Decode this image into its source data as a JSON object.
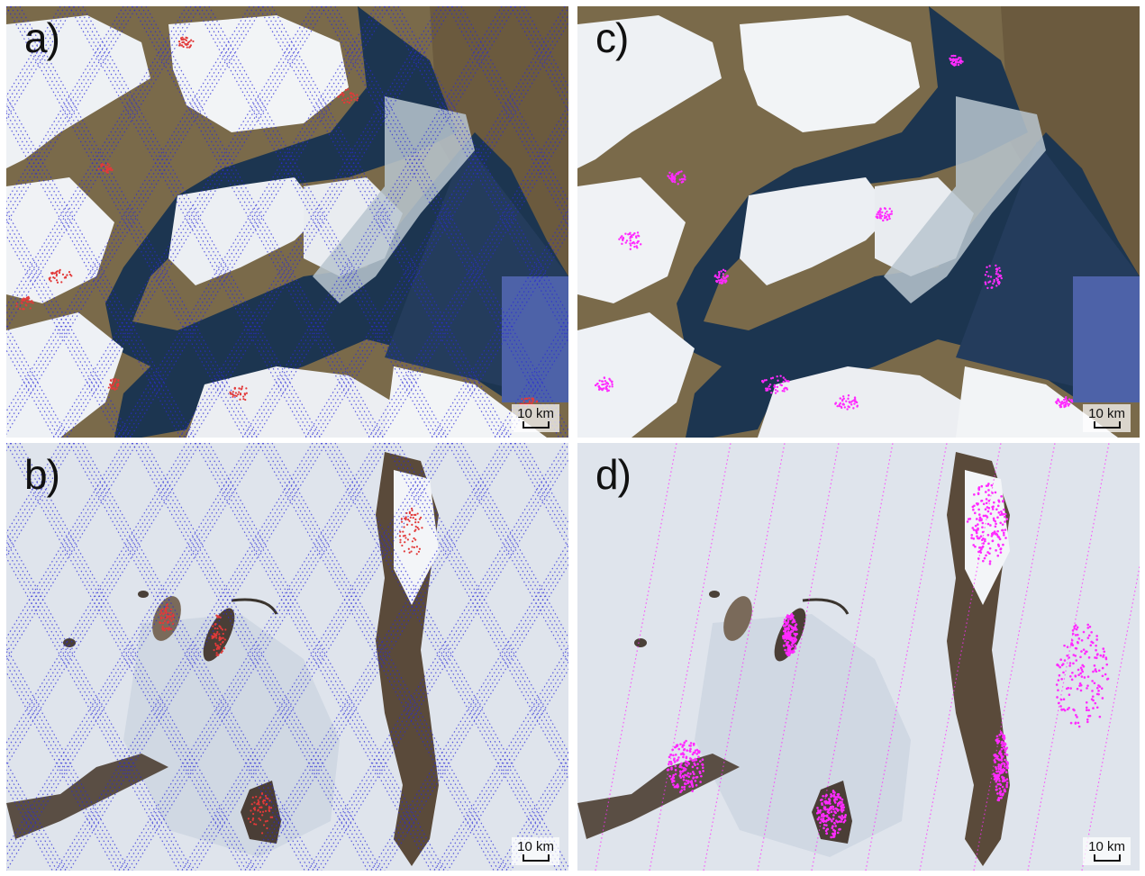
{
  "figure": {
    "panels": [
      {
        "id": "a",
        "label": "a)",
        "scale": "10 km",
        "overlay": "tracks"
      },
      {
        "id": "b",
        "label": "b)",
        "scale": "10 km",
        "overlay": "tracks"
      },
      {
        "id": "c",
        "label": "c)",
        "scale": "10 km",
        "overlay": "points"
      },
      {
        "id": "d",
        "label": "d)",
        "scale": "10 km",
        "overlay": "points"
      }
    ],
    "colors": {
      "track_blue": "#2a2ad8",
      "rock_red": "#e23a3a",
      "point_magenta": "#ff2bff",
      "sea_dark": "#1c3550",
      "ice_white": "#f2f4f6",
      "rock_brown": "#6b5a3e",
      "antarctic_ice": "#dfe4ec"
    }
  }
}
